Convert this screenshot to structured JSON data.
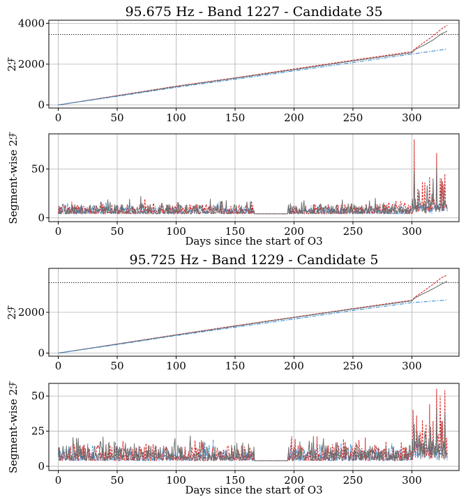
{
  "chart_data": [
    {
      "type": "line",
      "title": "95.675 Hz - Band 1227 - Candidate 35",
      "xlabel": "",
      "ylabel": "2ℱ",
      "xlim": [
        -8,
        340
      ],
      "ylim": [
        -150,
        4150
      ],
      "xticks": [
        0,
        50,
        100,
        150,
        200,
        250,
        300
      ],
      "yticks": [
        0,
        2000,
        4000
      ],
      "grid": true,
      "threshold": 3450,
      "series": [
        {
          "style": "red-dashed",
          "color": "#d62728",
          "x": [
            0,
            50,
            100,
            150,
            200,
            250,
            300,
            303,
            310,
            318,
            325,
            330
          ],
          "y": [
            0,
            460,
            920,
            1330,
            1760,
            2190,
            2610,
            2760,
            3050,
            3380,
            3720,
            3900
          ]
        },
        {
          "style": "gray-solid",
          "color": "#6e6e6e",
          "x": [
            0,
            50,
            100,
            150,
            200,
            250,
            300,
            303,
            310,
            318,
            325,
            330
          ],
          "y": [
            0,
            445,
            900,
            1310,
            1730,
            2160,
            2560,
            2730,
            2920,
            3180,
            3480,
            3610
          ]
        },
        {
          "style": "blue-dashdot",
          "color": "#3a8fd9",
          "x": [
            0,
            50,
            100,
            150,
            200,
            250,
            300,
            330
          ],
          "y": [
            0,
            425,
            865,
            1260,
            1670,
            2080,
            2490,
            2740
          ]
        }
      ]
    },
    {
      "type": "line",
      "title": "",
      "xlabel": "Days since the start of O3",
      "ylabel": "Segment-wise 2ℱ",
      "xlim": [
        -8,
        340
      ],
      "ylim": [
        -4,
        86
      ],
      "xticks": [
        0,
        50,
        100,
        150,
        200,
        250,
        300
      ],
      "yticks": [
        0,
        50
      ],
      "grid": true,
      "gap": [
        166,
        195
      ],
      "series": [
        {
          "style": "blue-dashdot",
          "color": "#3a8fd9",
          "base": 4,
          "amp": 8,
          "peaks": []
        },
        {
          "style": "red-dashed",
          "color": "#d62728",
          "base": 4,
          "amp": 10,
          "peaks": [
            [
              302,
              80
            ],
            [
              305,
              30
            ],
            [
              309,
              37
            ],
            [
              311,
              36
            ],
            [
              315,
              42
            ],
            [
              318,
              20
            ],
            [
              321,
              66
            ],
            [
              324,
              40
            ],
            [
              326,
              37
            ],
            [
              328,
              45
            ]
          ]
        },
        {
          "style": "gray-solid",
          "color": "#6e6e6e",
          "base": 4,
          "amp": 10,
          "peaks": [
            [
              70,
              22
            ],
            [
              302,
              48
            ],
            [
              306,
              28
            ],
            [
              313,
              33
            ],
            [
              318,
              40
            ],
            [
              321,
              52
            ],
            [
              325,
              40
            ],
            [
              327,
              34
            ]
          ]
        }
      ]
    },
    {
      "type": "line",
      "title": "95.725 Hz - Band 1229 - Candidate 5",
      "xlabel": "",
      "ylabel": "2ℱ",
      "xlim": [
        -8,
        340
      ],
      "ylim": [
        -150,
        4150
      ],
      "xticks": [
        0,
        50,
        100,
        150,
        200,
        250,
        300
      ],
      "yticks": [
        0,
        2000
      ],
      "grid": true,
      "threshold": 3450,
      "series": [
        {
          "style": "red-dashed",
          "color": "#d62728",
          "x": [
            0,
            50,
            100,
            150,
            200,
            250,
            300,
            303,
            310,
            318,
            325,
            330
          ],
          "y": [
            0,
            450,
            900,
            1340,
            1760,
            2180,
            2590,
            2760,
            3040,
            3370,
            3690,
            3820
          ]
        },
        {
          "style": "gray-solid",
          "color": "#6e6e6e",
          "x": [
            0,
            50,
            100,
            150,
            200,
            250,
            300,
            303,
            310,
            318,
            325,
            330
          ],
          "y": [
            0,
            440,
            885,
            1320,
            1740,
            2160,
            2560,
            2720,
            2920,
            3150,
            3380,
            3520
          ]
        },
        {
          "style": "blue-dashdot",
          "color": "#3a8fd9",
          "x": [
            0,
            50,
            100,
            150,
            200,
            250,
            300,
            330
          ],
          "y": [
            0,
            420,
            860,
            1270,
            1670,
            2090,
            2470,
            2600
          ]
        }
      ]
    },
    {
      "type": "line",
      "title": "",
      "xlabel": "Days since the start of O3",
      "ylabel": "Segment-wise 2ℱ",
      "xlim": [
        -8,
        340
      ],
      "ylim": [
        -3,
        59
      ],
      "xticks": [
        0,
        50,
        100,
        150,
        200,
        250,
        300
      ],
      "yticks": [
        0,
        25,
        50
      ],
      "grid": true,
      "gap": [
        166,
        195
      ],
      "series": [
        {
          "style": "blue-dashdot",
          "color": "#3a8fd9",
          "base": 4,
          "amp": 8,
          "peaks": []
        },
        {
          "style": "red-dashed",
          "color": "#d62728",
          "base": 4,
          "amp": 11,
          "peaks": [
            [
              301,
              40
            ],
            [
              304,
              36
            ],
            [
              307,
              24
            ],
            [
              309,
              33
            ],
            [
              312,
              30
            ],
            [
              315,
              44
            ],
            [
              318,
              32
            ],
            [
              321,
              55
            ],
            [
              324,
              50
            ],
            [
              326,
              32
            ],
            [
              328,
              54
            ]
          ]
        },
        {
          "style": "gray-solid",
          "color": "#6e6e6e",
          "base": 4,
          "amp": 11,
          "peaks": [
            [
              302,
              30
            ],
            [
              306,
              22
            ],
            [
              311,
              25
            ],
            [
              316,
              28
            ],
            [
              321,
              41
            ],
            [
              325,
              32
            ],
            [
              328,
              38
            ]
          ]
        }
      ]
    }
  ]
}
